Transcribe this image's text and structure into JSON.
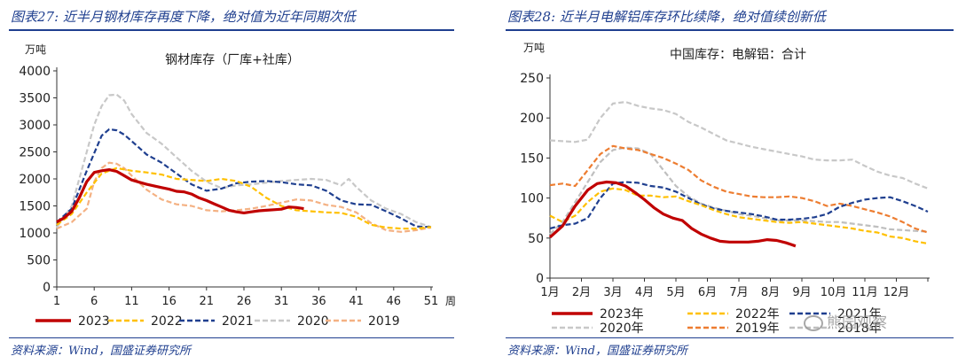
{
  "left": {
    "figure_title": "图表27: 近半月钢材库存再度下降，绝对值为近年同期次低",
    "source": "资料来源：Wind，国盛证券研究所"
  },
  "right": {
    "figure_title": "图表28: 近半月电解铝库存环比续降，绝对值续创新低",
    "source": "资料来源：Wind，国盛证券研究所",
    "watermark": "熊园观察"
  },
  "chart_data": [
    {
      "type": "line",
      "title": "钢材库存（厂库+社库）",
      "ylabel": "万吨",
      "xlabel": "周",
      "x_ticks": [
        1,
        6,
        11,
        16,
        21,
        26,
        31,
        36,
        41,
        46,
        51
      ],
      "xlim": [
        1,
        51
      ],
      "ylim": [
        0,
        4000
      ],
      "y_ticks": [
        0,
        500,
        1000,
        1500,
        2000,
        2500,
        3000,
        3500,
        4000
      ],
      "grid": false,
      "legend_position": "bottom",
      "series": [
        {
          "name": "2023",
          "color": "#c00000",
          "style": "solid",
          "width": 3.2,
          "x": [
            1,
            2,
            3,
            4,
            5,
            6,
            7,
            8,
            9,
            10,
            11,
            12,
            13,
            14,
            15,
            16,
            17,
            18,
            19,
            20,
            21,
            22,
            23,
            24,
            25,
            26,
            27,
            28,
            29,
            30,
            31,
            32,
            33,
            34
          ],
          "y": [
            1200,
            1280,
            1400,
            1650,
            1950,
            2120,
            2150,
            2170,
            2140,
            2060,
            1980,
            1940,
            1900,
            1870,
            1840,
            1810,
            1770,
            1760,
            1720,
            1650,
            1600,
            1540,
            1480,
            1420,
            1390,
            1370,
            1390,
            1410,
            1420,
            1430,
            1440,
            1480,
            1470,
            1450
          ]
        },
        {
          "name": "2022",
          "color": "#ffc000",
          "style": "dash",
          "width": 2.2,
          "x": [
            1,
            3,
            5,
            7,
            9,
            11,
            13,
            15,
            17,
            19,
            21,
            23,
            25,
            27,
            29,
            31,
            33,
            35,
            37,
            39,
            41,
            43,
            45,
            47,
            49,
            51
          ],
          "y": [
            1150,
            1350,
            1750,
            2100,
            2200,
            2150,
            2120,
            2080,
            2000,
            1980,
            1960,
            2000,
            1960,
            1850,
            1650,
            1500,
            1420,
            1400,
            1380,
            1370,
            1300,
            1150,
            1100,
            1080,
            1080,
            1110
          ]
        },
        {
          "name": "2021",
          "color": "#1f3f8f",
          "style": "dash",
          "width": 2.2,
          "x": [
            1,
            3,
            5,
            7,
            8,
            9,
            10,
            11,
            13,
            15,
            17,
            19,
            21,
            23,
            25,
            27,
            29,
            31,
            33,
            35,
            37,
            39,
            41,
            43,
            45,
            47,
            49,
            51
          ],
          "y": [
            1200,
            1450,
            2150,
            2800,
            2920,
            2900,
            2820,
            2700,
            2450,
            2300,
            2100,
            1900,
            1780,
            1820,
            1920,
            1950,
            1960,
            1940,
            1900,
            1880,
            1780,
            1600,
            1530,
            1520,
            1400,
            1270,
            1120,
            1110
          ]
        },
        {
          "name": "2020",
          "color": "#c8c8c8",
          "style": "dash",
          "width": 2.2,
          "x": [
            1,
            3,
            5,
            6,
            7,
            8,
            9,
            10,
            11,
            13,
            15,
            17,
            19,
            21,
            23,
            25,
            27,
            29,
            31,
            33,
            35,
            37,
            39,
            40,
            41,
            43,
            45,
            47,
            49,
            51
          ],
          "y": [
            1100,
            1500,
            2500,
            3000,
            3350,
            3550,
            3560,
            3450,
            3200,
            2850,
            2650,
            2400,
            2150,
            1950,
            1830,
            1880,
            1900,
            1930,
            1960,
            1980,
            2000,
            1980,
            1880,
            2000,
            1850,
            1600,
            1450,
            1350,
            1200,
            1110
          ]
        },
        {
          "name": "2019",
          "color": "#f4b183",
          "style": "dash",
          "width": 2.2,
          "x": [
            1,
            3,
            5,
            6,
            7,
            8,
            9,
            10,
            11,
            13,
            15,
            17,
            19,
            21,
            23,
            25,
            27,
            29,
            31,
            33,
            35,
            37,
            39,
            41,
            43,
            45,
            47,
            49,
            51
          ],
          "y": [
            1080,
            1200,
            1450,
            1950,
            2200,
            2300,
            2280,
            2200,
            2060,
            1800,
            1620,
            1530,
            1500,
            1420,
            1400,
            1420,
            1450,
            1500,
            1560,
            1620,
            1600,
            1520,
            1480,
            1380,
            1180,
            1050,
            1020,
            1050,
            1100
          ]
        }
      ]
    },
    {
      "type": "line",
      "title": "中国库存：电解铝：合计",
      "ylabel": "万吨",
      "x_ticks": [
        "1月",
        "2月",
        "3月",
        "4月",
        "5月",
        "6月",
        "7月",
        "8月",
        "9月",
        "10月",
        "11月",
        "12月"
      ],
      "xlim": [
        1,
        13
      ],
      "ylim": [
        0,
        250
      ],
      "y_ticks": [
        0,
        50,
        100,
        150,
        200,
        250
      ],
      "grid": false,
      "legend_position": "bottom",
      "series": [
        {
          "name": "2023年",
          "color": "#c00000",
          "style": "solid",
          "width": 3.2,
          "x": [
            1,
            1.4,
            1.8,
            2.2,
            2.5,
            2.8,
            3.1,
            3.4,
            3.7,
            4,
            4.3,
            4.6,
            4.9,
            5.2,
            5.5,
            5.8,
            6.1,
            6.4,
            6.7,
            7,
            7.3,
            7.6,
            7.9,
            8.2,
            8.5,
            8.8
          ],
          "y": [
            51,
            65,
            90,
            110,
            118,
            120,
            119,
            115,
            107,
            98,
            88,
            80,
            75,
            72,
            62,
            55,
            50,
            46,
            45,
            45,
            45,
            46,
            48,
            47,
            44,
            40
          ]
        },
        {
          "name": "2022年",
          "color": "#ffc000",
          "style": "dash",
          "width": 2.2,
          "x": [
            1,
            1.4,
            1.8,
            2.2,
            2.6,
            3,
            3.4,
            3.8,
            4.2,
            4.6,
            5,
            5.4,
            5.8,
            6.2,
            6.6,
            7,
            7.4,
            7.8,
            8.2,
            8.6,
            9,
            9.4,
            9.8,
            10.2,
            10.6,
            11,
            11.4,
            11.8,
            12.2,
            12.6,
            13
          ],
          "y": [
            78,
            70,
            78,
            95,
            108,
            112,
            110,
            103,
            103,
            101,
            102,
            96,
            91,
            85,
            80,
            76,
            74,
            72,
            70,
            69,
            70,
            68,
            66,
            64,
            62,
            59,
            57,
            52,
            50,
            46,
            43
          ]
        },
        {
          "name": "2021年",
          "color": "#1f3f8f",
          "style": "dash",
          "width": 2.2,
          "x": [
            1,
            1.4,
            1.8,
            2.2,
            2.6,
            3,
            3.4,
            3.8,
            4.2,
            4.6,
            5,
            5.4,
            5.8,
            6.2,
            6.6,
            7,
            7.4,
            7.8,
            8.2,
            8.6,
            9,
            9.4,
            9.8,
            10.2,
            10.6,
            11,
            11.4,
            11.8,
            12.2,
            12.6,
            13
          ],
          "y": [
            62,
            66,
            68,
            75,
            100,
            118,
            120,
            119,
            115,
            113,
            108,
            100,
            92,
            87,
            84,
            82,
            80,
            77,
            73,
            73,
            74,
            76,
            80,
            89,
            94,
            98,
            100,
            101,
            96,
            90,
            83
          ]
        },
        {
          "name": "2020年",
          "color": "#c8c8c8",
          "style": "dash",
          "width": 2.2,
          "x": [
            1,
            1.4,
            1.8,
            2.2,
            2.6,
            3,
            3.4,
            3.8,
            4.2,
            4.6,
            5,
            5.4,
            5.8,
            6.2,
            6.6,
            7,
            7.4,
            7.8,
            8.2,
            8.6,
            9,
            9.4,
            9.8,
            10.2,
            10.6,
            11,
            11.4,
            11.8,
            12.2,
            12.6,
            13
          ],
          "y": [
            172,
            171,
            170,
            173,
            200,
            218,
            220,
            215,
            212,
            210,
            205,
            195,
            188,
            180,
            172,
            168,
            164,
            161,
            158,
            155,
            152,
            148,
            147,
            147,
            148,
            140,
            133,
            128,
            125,
            118,
            112
          ]
        },
        {
          "name": "2019年",
          "color": "#ed7d31",
          "style": "dash",
          "width": 2.2,
          "x": [
            1,
            1.4,
            1.8,
            2.2,
            2.6,
            3,
            3.4,
            3.8,
            4.2,
            4.6,
            5,
            5.4,
            5.8,
            6.2,
            6.6,
            7,
            7.4,
            7.8,
            8.2,
            8.6,
            9,
            9.4,
            9.8,
            10.2,
            10.6,
            11,
            11.4,
            11.8,
            12.2,
            12.6,
            13
          ],
          "y": [
            116,
            118,
            115,
            135,
            155,
            165,
            162,
            160,
            155,
            150,
            143,
            135,
            122,
            114,
            108,
            105,
            102,
            101,
            101,
            102,
            100,
            96,
            90,
            93,
            90,
            86,
            82,
            77,
            70,
            62,
            57
          ]
        },
        {
          "name": "2018年",
          "color": "#bfbfbf",
          "style": "dash",
          "width": 2.2,
          "x": [
            1,
            1.4,
            1.8,
            2.2,
            2.6,
            3,
            3.4,
            3.8,
            4.2,
            4.6,
            5,
            5.4,
            5.8,
            6.2,
            6.6,
            7,
            7.4,
            7.8,
            8.2,
            8.6,
            9,
            9.4,
            9.8,
            10.2,
            10.6,
            11,
            11.4,
            11.8,
            12.2,
            12.6,
            13
          ],
          "y": [
            55,
            70,
            95,
            120,
            145,
            160,
            163,
            162,
            155,
            135,
            115,
            102,
            93,
            88,
            84,
            80,
            78,
            75,
            72,
            72,
            72,
            71,
            70,
            70,
            68,
            66,
            64,
            61,
            60,
            59,
            58
          ]
        }
      ]
    }
  ]
}
